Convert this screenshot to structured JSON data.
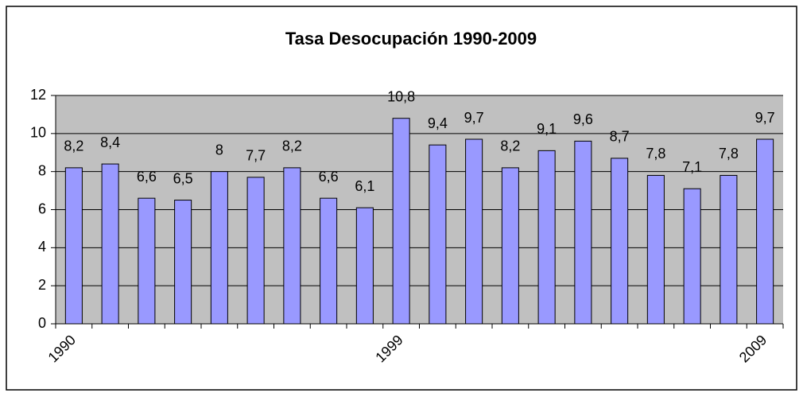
{
  "chart_data": {
    "type": "bar",
    "title": "Tasa Desocupación 1990-2009",
    "categories": [
      "1990",
      null,
      null,
      null,
      null,
      null,
      null,
      null,
      null,
      "1999",
      null,
      null,
      null,
      null,
      null,
      null,
      null,
      null,
      null,
      "2009"
    ],
    "values": [
      8.2,
      8.4,
      6.6,
      6.5,
      8,
      7.7,
      8.2,
      6.6,
      6.1,
      10.8,
      9.4,
      9.7,
      8.2,
      9.1,
      9.6,
      8.7,
      7.8,
      7.1,
      7.8,
      9.7
    ],
    "value_labels": [
      "8,2",
      "8,4",
      "6,6",
      "6,5",
      "8",
      "7,7",
      "8,2",
      "6,6",
      "6,1",
      "10,8",
      "9,4",
      "9,7",
      "8,2",
      "9,1",
      "9,6",
      "8,7",
      "7,8",
      "7,1",
      "7,8",
      "9,7"
    ],
    "color": "#9999ff",
    "ylim": [
      0,
      12
    ],
    "yticks": [
      0,
      2,
      4,
      6,
      8,
      10,
      12
    ],
    "grid": true
  }
}
